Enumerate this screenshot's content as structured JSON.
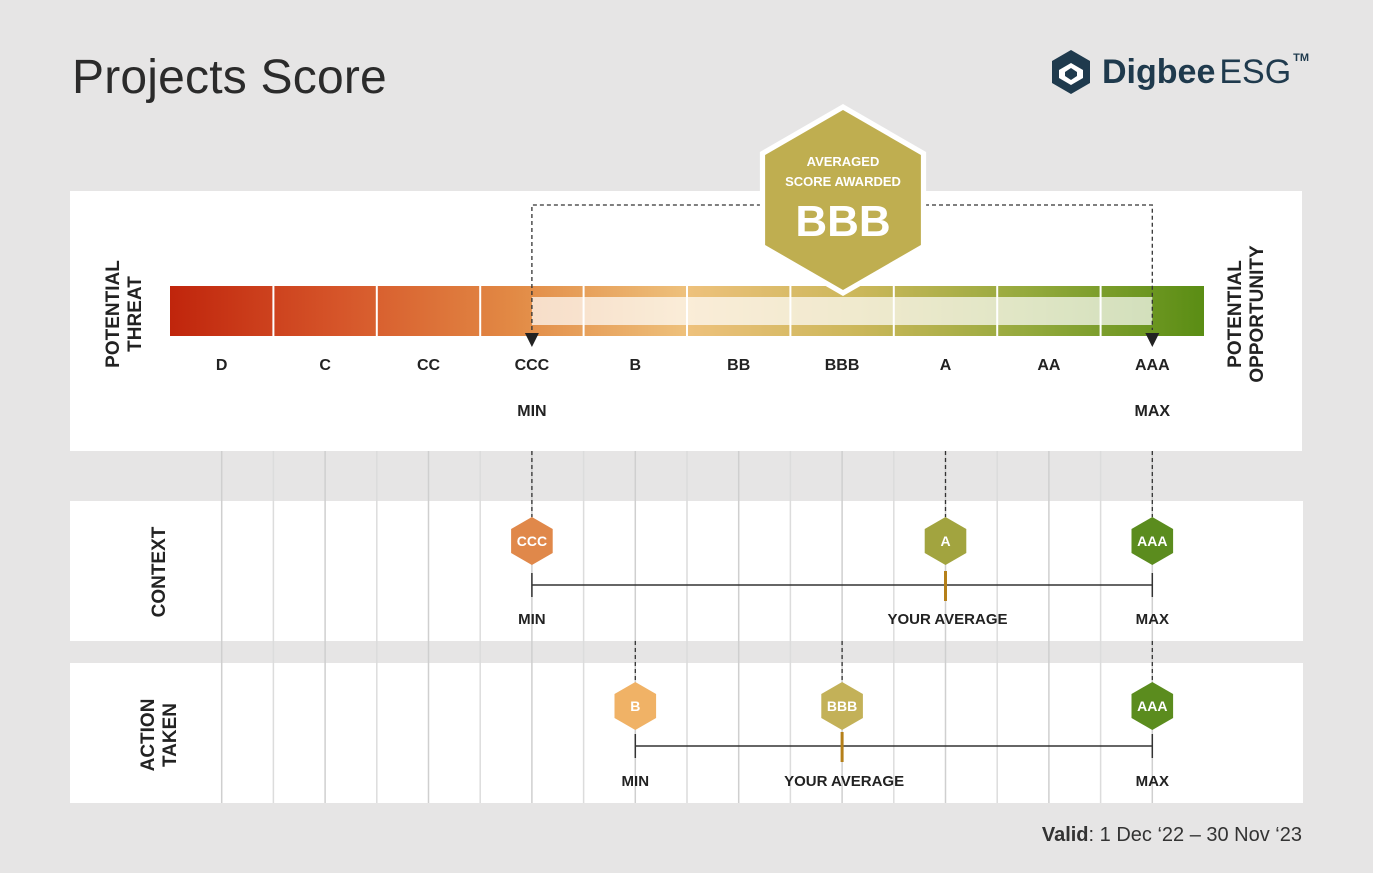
{
  "header": {
    "title": "Projects Score",
    "logo": {
      "icon": "digbee-hex-icon",
      "word_bold": "Digbee",
      "word_light": "ESG",
      "tm": "TM"
    }
  },
  "scale": {
    "ratings": [
      "D",
      "C",
      "CC",
      "CCC",
      "B",
      "BB",
      "BBB",
      "A",
      "AA",
      "AAA"
    ],
    "left_label": [
      "POTENTIAL",
      "THREAT"
    ],
    "right_label": [
      "POTENTIAL",
      "OPPORTUNITY"
    ],
    "min_label": "MIN",
    "max_label": "MAX",
    "min_rating": "CCC",
    "max_rating": "AAA",
    "gradient_colors": [
      "#c0250c",
      "#d6562a",
      "#e28a45",
      "#eec17c",
      "#cbb75a",
      "#93a93c",
      "#5a8d14"
    ]
  },
  "awarded": {
    "line1": "AVERAGED",
    "line2": "SCORE AWARDED",
    "score": "BBB",
    "color": "#bfae50"
  },
  "rows": [
    {
      "label": [
        "CONTEXT"
      ],
      "min": {
        "rating": "CCC",
        "label": "MIN",
        "color": "#e0884a"
      },
      "average": {
        "rating": "A",
        "label": "YOUR AVERAGE",
        "color": "#a2a43f"
      },
      "max": {
        "rating": "AAA",
        "label": "MAX",
        "color": "#5b8c1e"
      }
    },
    {
      "label": [
        "ACTION",
        "TAKEN"
      ],
      "min": {
        "rating": "B",
        "label": "MIN",
        "color": "#f0b266"
      },
      "average": {
        "rating": "BBB",
        "label": "YOUR AVERAGE",
        "color": "#c3b158"
      },
      "max": {
        "rating": "AAA",
        "label": "MAX",
        "color": "#5b8c1e"
      }
    }
  ],
  "footer": {
    "valid_label": "Valid",
    "valid_range": ": 1 Dec ‘22 – 30 Nov ‘23"
  },
  "colors": {
    "tick_orange": "#b5801a",
    "grid": "#d3d3d3",
    "text": "#222222"
  }
}
